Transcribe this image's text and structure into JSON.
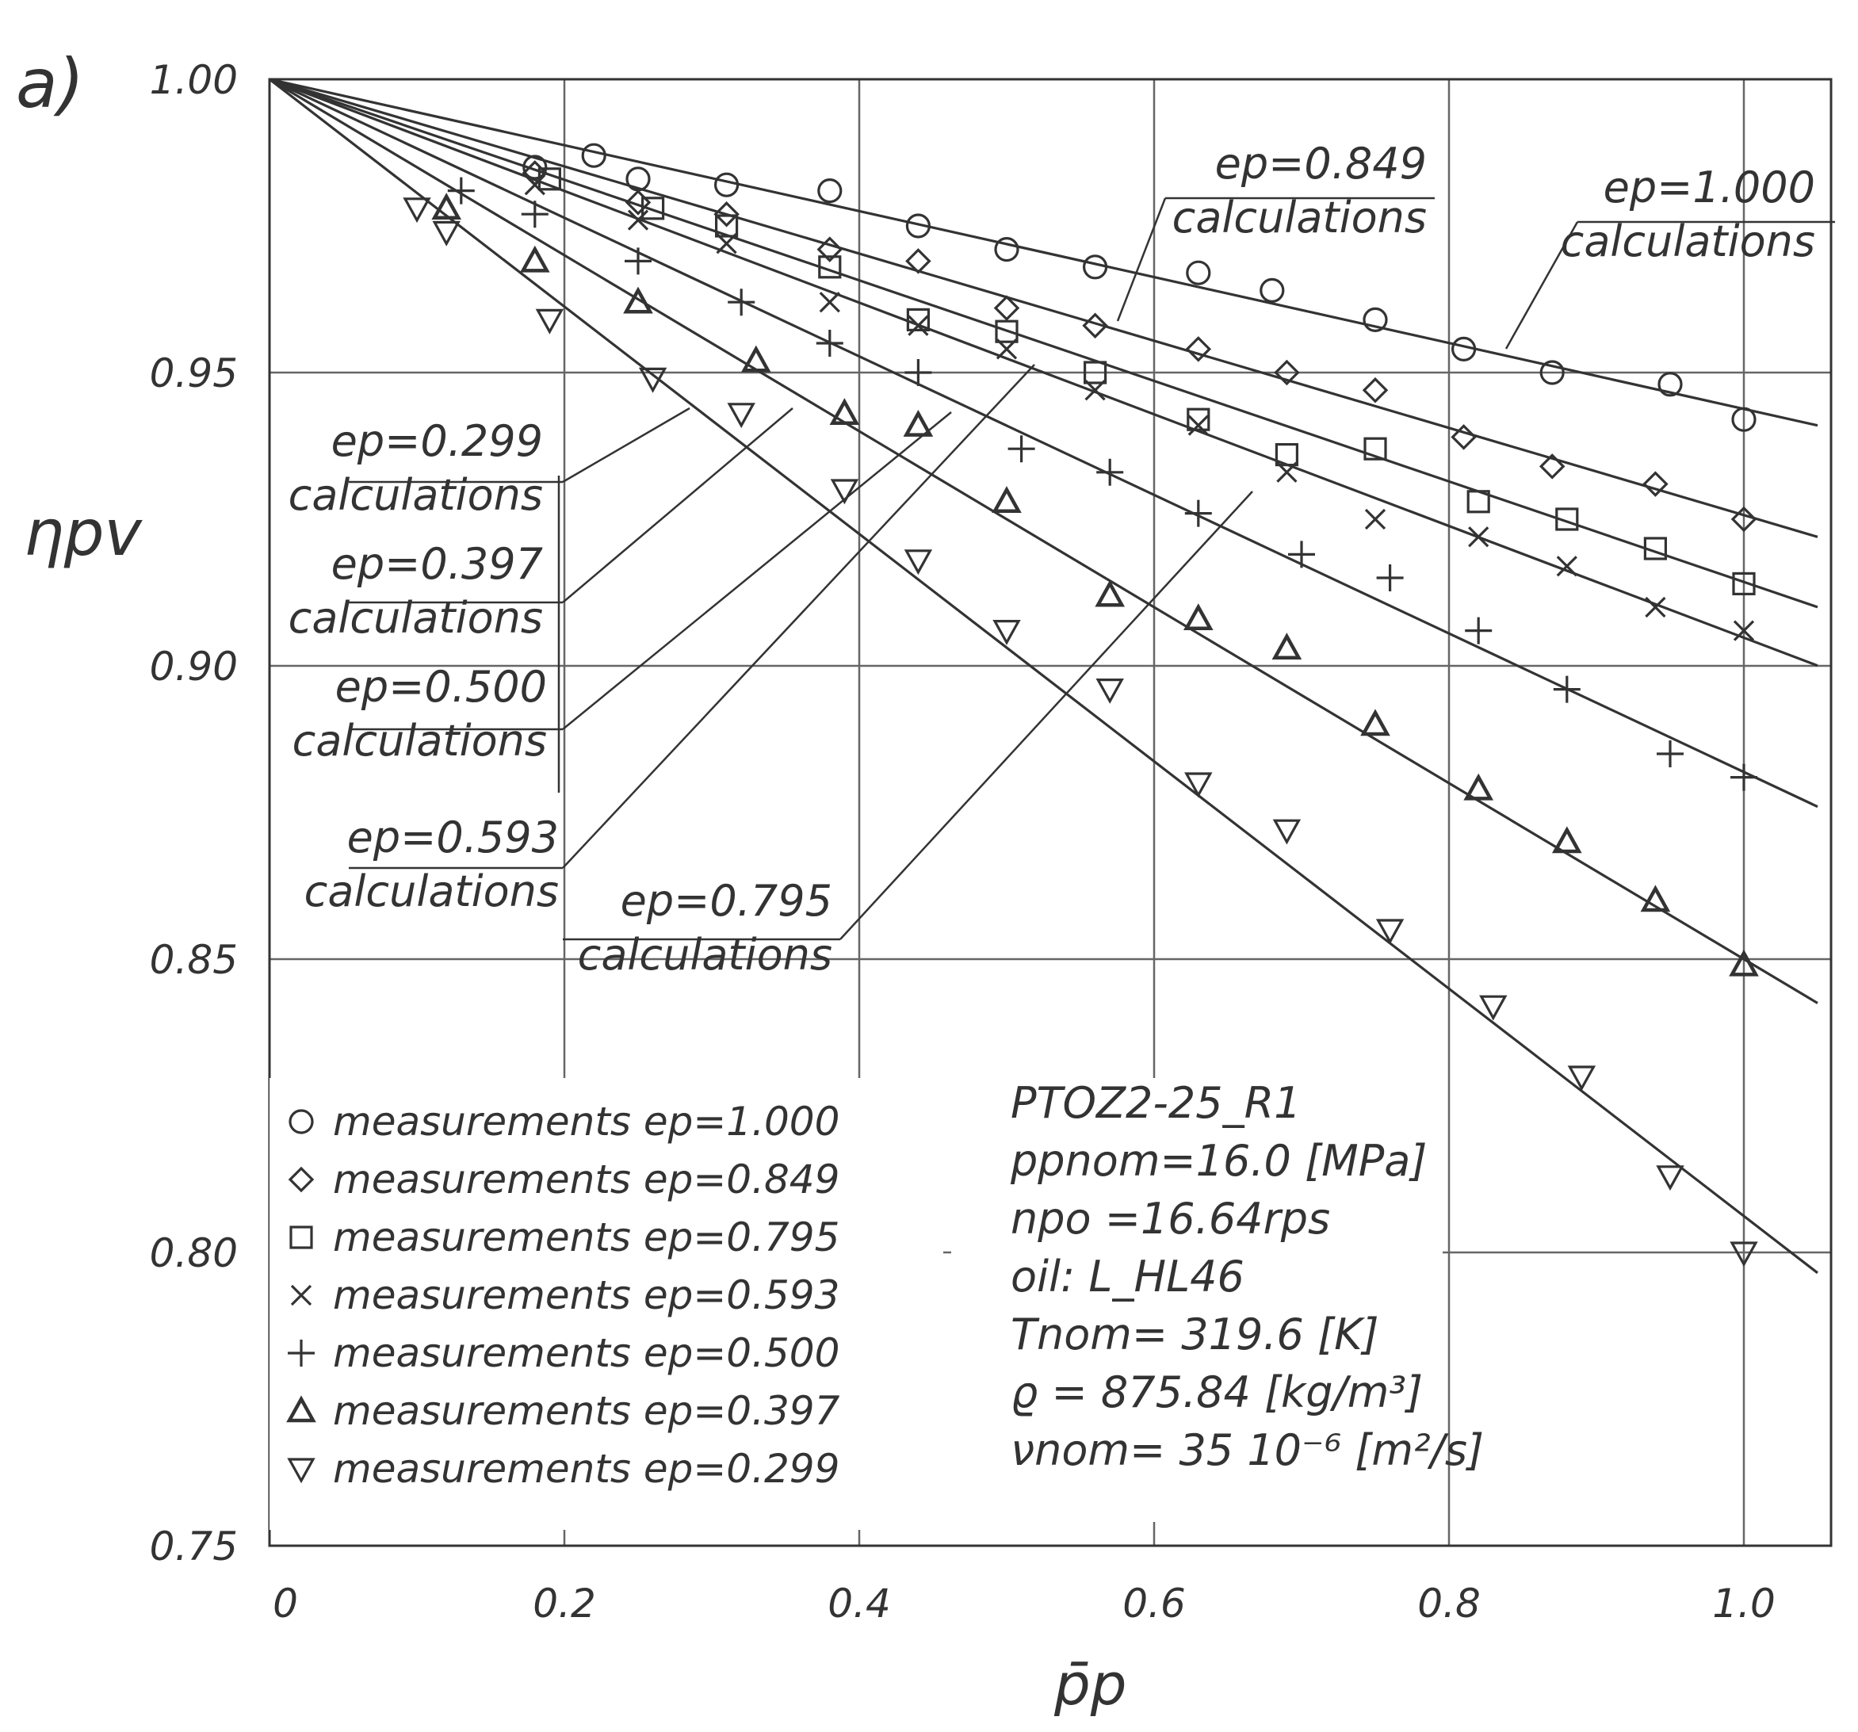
{
  "chart_data": {
    "type": "scatter",
    "panel_label": "a)",
    "xlabel": "p̄p",
    "ylabel": "ηpv",
    "xlim": [
      0,
      1.05
    ],
    "ylim": [
      0.75,
      1.0
    ],
    "x_ticks": [
      "0",
      "0.2",
      "0.4",
      "0.6",
      "0.8",
      "1.0"
    ],
    "y_ticks": [
      "0.75",
      "0.80",
      "0.85",
      "0.90",
      "0.95",
      "1.00"
    ],
    "grid": true,
    "series": [
      {
        "ep": "1.000",
        "marker": "circle",
        "slope": -0.0562,
        "label": "measurements   ep=1.000",
        "callout": [
          "ep=1.000",
          "calculations"
        ],
        "x": [
          0.18,
          0.22,
          0.25,
          0.31,
          0.38,
          0.44,
          0.5,
          0.56,
          0.63,
          0.68,
          0.75,
          0.81,
          0.87,
          0.95,
          1.0
        ],
        "y": [
          0.985,
          0.987,
          0.983,
          0.982,
          0.981,
          0.975,
          0.971,
          0.968,
          0.967,
          0.964,
          0.959,
          0.954,
          0.95,
          0.948,
          0.942
        ]
      },
      {
        "ep": "0.849",
        "marker": "diamond",
        "slope": -0.0743,
        "label": "measurements   ep=0.849",
        "callout": [
          "ep=0.849",
          "calculations"
        ],
        "x": [
          0.18,
          0.25,
          0.31,
          0.38,
          0.44,
          0.5,
          0.56,
          0.63,
          0.69,
          0.75,
          0.81,
          0.87,
          0.94,
          1.0
        ],
        "y": [
          0.984,
          0.979,
          0.977,
          0.971,
          0.969,
          0.961,
          0.958,
          0.954,
          0.95,
          0.947,
          0.939,
          0.934,
          0.931,
          0.925
        ]
      },
      {
        "ep": "0.795",
        "marker": "square",
        "slope": -0.0857,
        "label": "measurements  ep=0.795",
        "callout": [
          "ep=0.795",
          "calculations"
        ],
        "x": [
          0.19,
          0.26,
          0.31,
          0.38,
          0.44,
          0.5,
          0.56,
          0.63,
          0.69,
          0.75,
          0.82,
          0.88,
          0.94,
          1.0
        ],
        "y": [
          0.983,
          0.978,
          0.975,
          0.968,
          0.959,
          0.957,
          0.95,
          0.942,
          0.936,
          0.937,
          0.928,
          0.925,
          0.92,
          0.914
        ]
      },
      {
        "ep": "0.593",
        "marker": "cross",
        "slope": -0.0952,
        "label": "measurements  ep=0.593",
        "callout": [
          "ep=0.593",
          "calculations"
        ],
        "x": [
          0.18,
          0.25,
          0.31,
          0.38,
          0.44,
          0.5,
          0.56,
          0.63,
          0.69,
          0.75,
          0.82,
          0.88,
          0.94,
          1.0
        ],
        "y": [
          0.982,
          0.976,
          0.972,
          0.962,
          0.958,
          0.954,
          0.947,
          0.941,
          0.933,
          0.925,
          0.922,
          0.917,
          0.91,
          0.906
        ]
      },
      {
        "ep": "0.500",
        "marker": "plus",
        "slope": -0.1181,
        "label": "measurements  ep=0.500",
        "callout": [
          "ep=0.500",
          "calculations"
        ],
        "x": [
          0.13,
          0.18,
          0.25,
          0.32,
          0.38,
          0.44,
          0.51,
          0.57,
          0.63,
          0.7,
          0.76,
          0.82,
          0.88,
          0.95,
          1.0
        ],
        "y": [
          0.981,
          0.977,
          0.969,
          0.962,
          0.955,
          0.95,
          0.937,
          0.933,
          0.926,
          0.919,
          0.915,
          0.906,
          0.896,
          0.885,
          0.881
        ]
      },
      {
        "ep": "0.397",
        "marker": "triangle-up",
        "slope": -0.15,
        "label": "measurements  ep=0.397",
        "callout": [
          "ep=0.397",
          "calculations"
        ],
        "x": [
          0.12,
          0.18,
          0.25,
          0.33,
          0.39,
          0.44,
          0.5,
          0.57,
          0.63,
          0.69,
          0.75,
          0.82,
          0.88,
          0.94,
          1.0
        ],
        "y": [
          0.978,
          0.969,
          0.962,
          0.952,
          0.943,
          0.941,
          0.928,
          0.912,
          0.908,
          0.903,
          0.89,
          0.879,
          0.87,
          0.86,
          0.849
        ]
      },
      {
        "ep": "0.299",
        "marker": "triangle-down",
        "slope": -0.1938,
        "label": "measurements  ep=0.299",
        "callout": [
          "ep=0.299",
          "calculations"
        ],
        "x": [
          0.1,
          0.12,
          0.19,
          0.26,
          0.32,
          0.39,
          0.44,
          0.5,
          0.57,
          0.63,
          0.69,
          0.76,
          0.83,
          0.89,
          0.95,
          1.0
        ],
        "y": [
          0.978,
          0.974,
          0.959,
          0.949,
          0.943,
          0.93,
          0.918,
          0.906,
          0.896,
          0.88,
          0.872,
          0.855,
          0.842,
          0.83,
          0.813,
          0.8
        ]
      }
    ],
    "info_lines": [
      "PTOZ2-25_R1",
      "ppnom=16.0 [MPa]",
      "npo  =16.64rps",
      "oil:  L_HL46",
      "Tnom= 319.6  [K]",
      "ϱ = 875.84 [kg/m³]",
      "νnom= 35 10⁻⁶ [m²/s]"
    ]
  }
}
